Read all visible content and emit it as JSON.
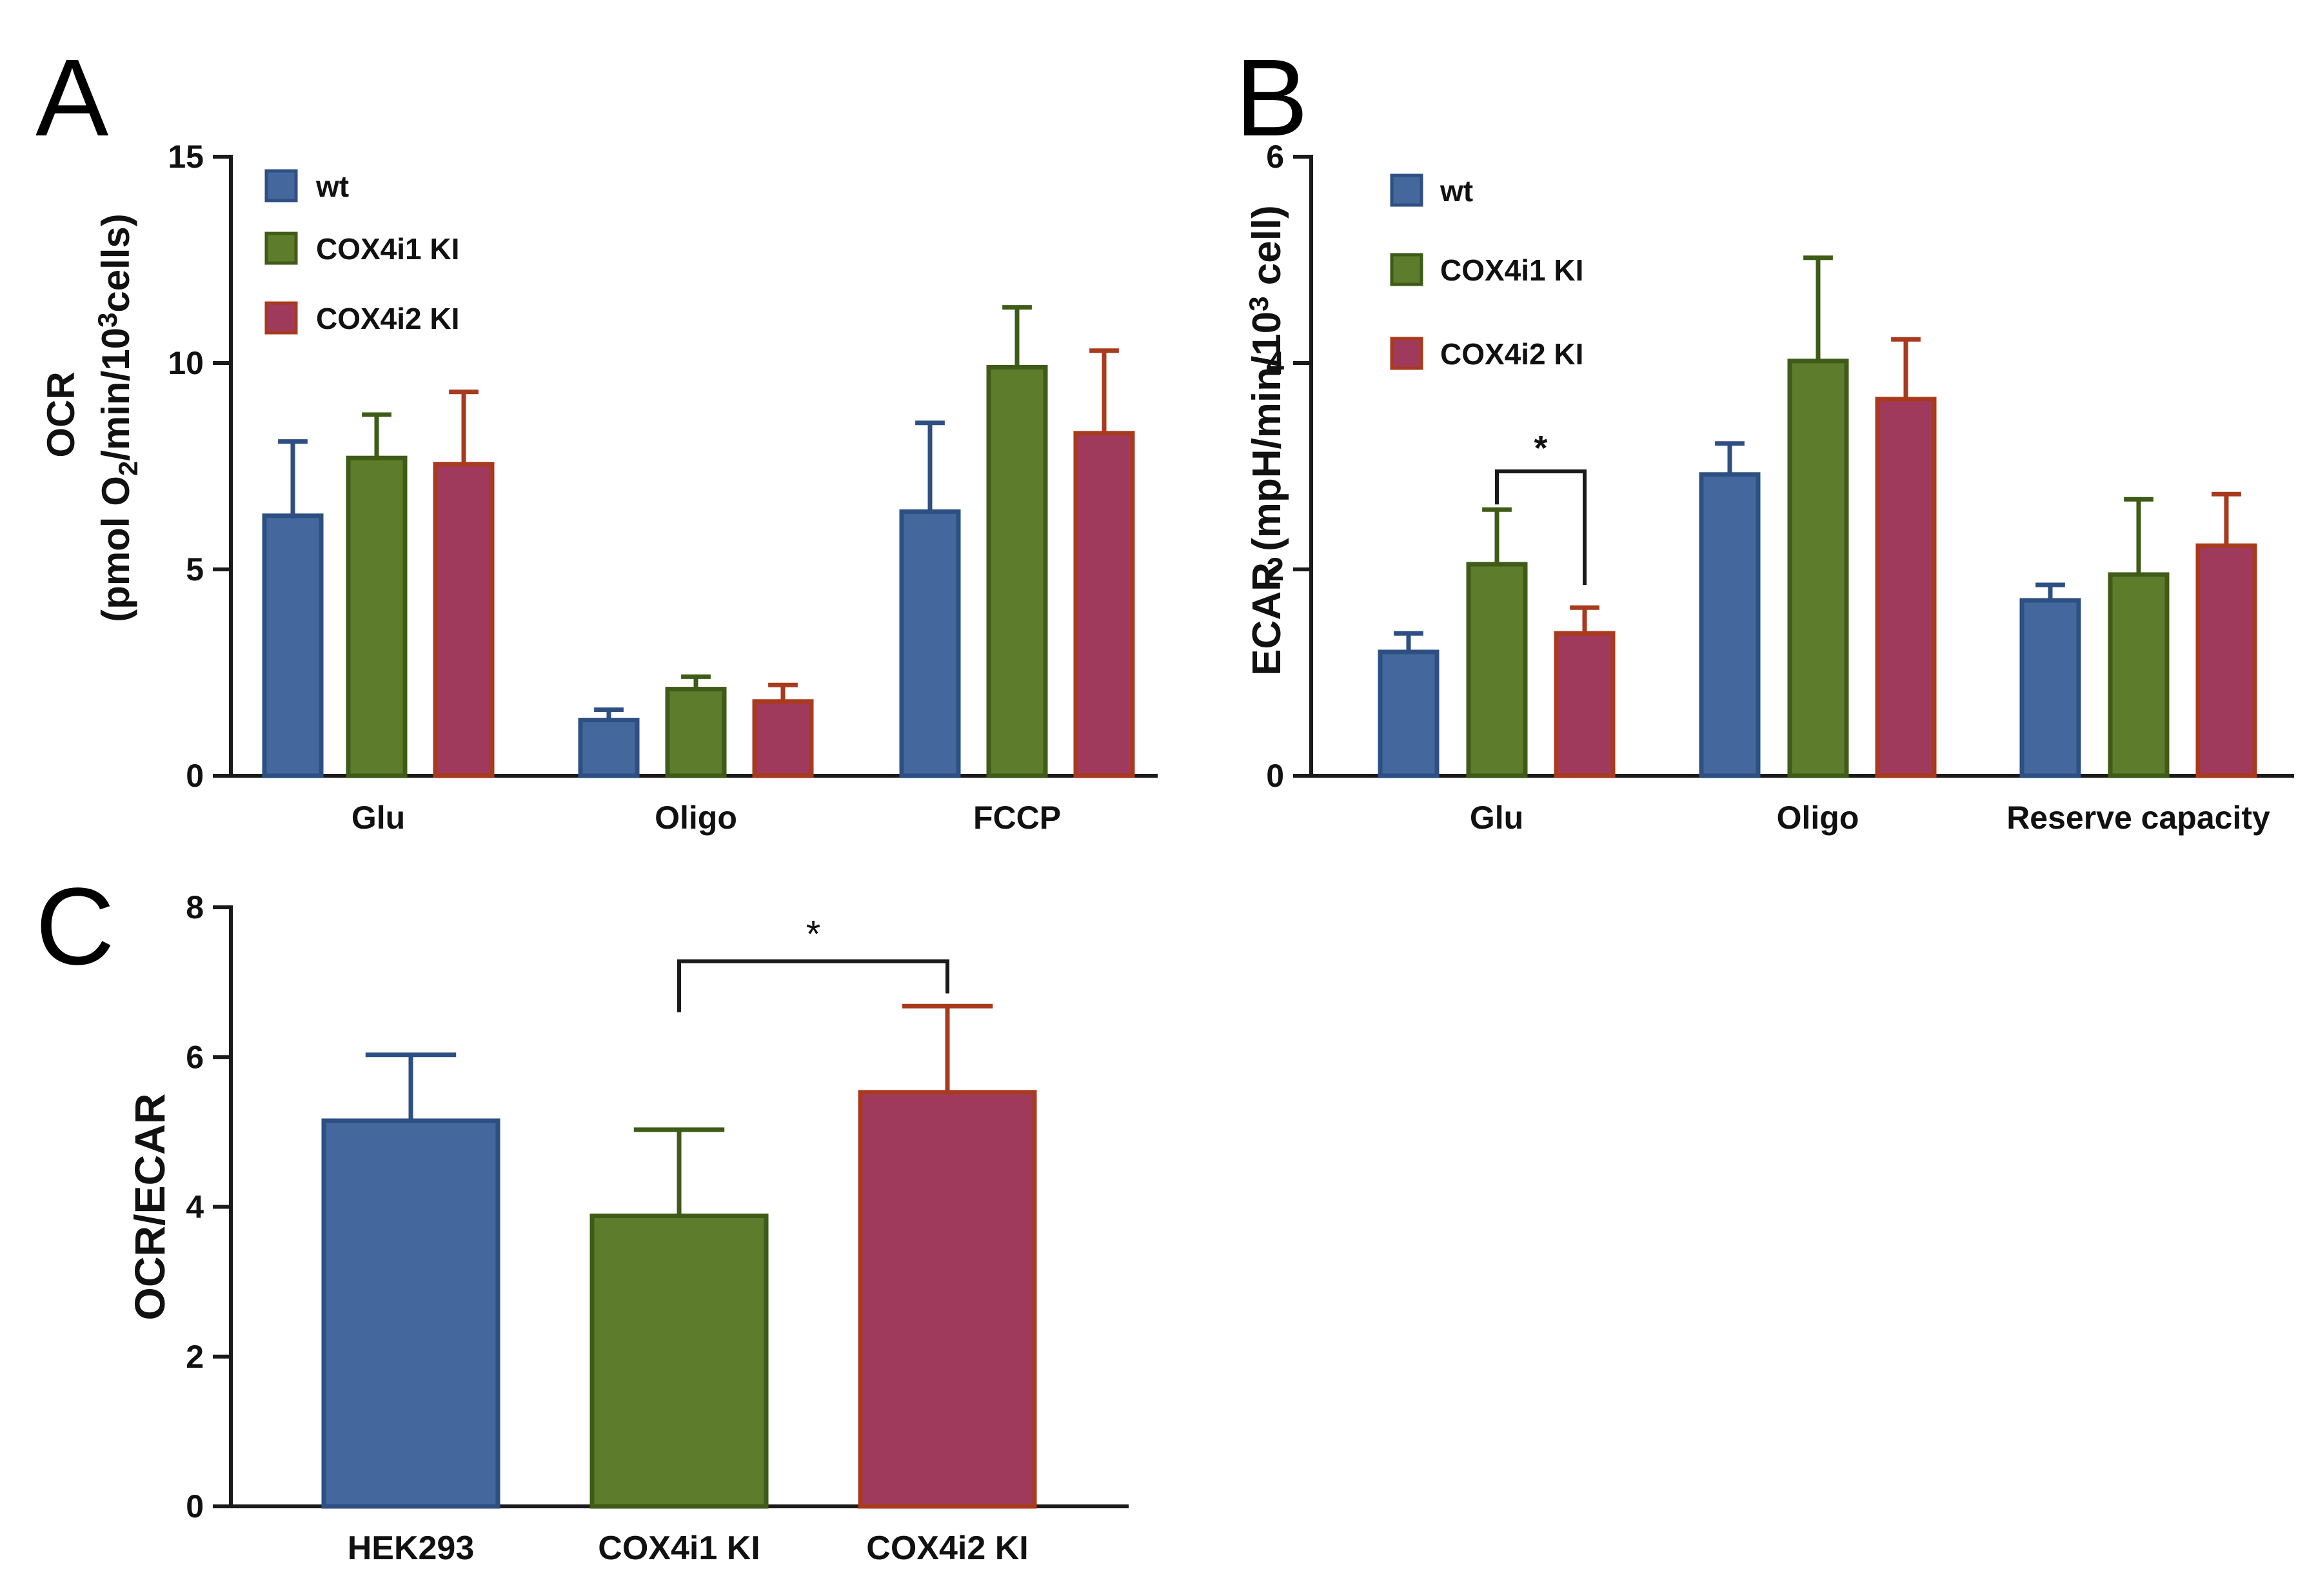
{
  "colors": {
    "axis": "#1a1a1a",
    "text": "#111111",
    "series": [
      {
        "fill": "#44689d",
        "stroke": "#2e4f82"
      },
      {
        "fill": "#5d7d2c",
        "stroke": "#3e5b17"
      },
      {
        "fill": "#a03a5d",
        "stroke": "#a83a1e"
      }
    ]
  },
  "chart_data": [
    {
      "panel": "A",
      "type": "bar",
      "ylabel_line1": "OCR",
      "ylabel_line2_parts": [
        "(pmol O",
        "2",
        "/min/10",
        "3",
        "cells)"
      ],
      "ylim": [
        0,
        15
      ],
      "yticks": [
        "0",
        "5",
        "10",
        "15"
      ],
      "yticks_values": [
        0,
        5,
        10,
        15
      ],
      "categories": [
        "Glu",
        "Oligo",
        "FCCP"
      ],
      "legend": [
        "wt",
        "COX4i1 KI",
        "COX4i2 KI"
      ],
      "series": [
        {
          "name": "wt",
          "values": [
            6.3,
            1.35,
            6.4
          ],
          "errors": [
            1.8,
            0.25,
            2.15
          ]
        },
        {
          "name": "COX4i1 KI",
          "values": [
            7.7,
            2.1,
            9.9
          ],
          "errors": [
            1.05,
            0.3,
            1.45
          ]
        },
        {
          "name": "COX4i2 KI",
          "values": [
            7.55,
            1.8,
            8.3
          ],
          "errors": [
            1.75,
            0.4,
            2.0
          ]
        }
      ],
      "significance": []
    },
    {
      "panel": "B",
      "type": "bar",
      "ylabel_parts": [
        "ECAR (mpH/min/10",
        "3",
        " cell)"
      ],
      "ylim": [
        0,
        6
      ],
      "yticks": [
        "0",
        "2",
        "4",
        "6"
      ],
      "yticks_values": [
        0,
        2,
        4,
        6
      ],
      "categories": [
        "Glu",
        "Oligo",
        "Reserve capacity"
      ],
      "legend": [
        "wt",
        "COX4i1 KI",
        "COX4i2 KI"
      ],
      "series": [
        {
          "name": "wt",
          "values": [
            1.2,
            2.92,
            1.7
          ],
          "errors": [
            0.18,
            0.3,
            0.15
          ]
        },
        {
          "name": "COX4i1 KI",
          "values": [
            2.05,
            4.02,
            1.95
          ],
          "errors": [
            0.53,
            1.0,
            0.73
          ]
        },
        {
          "name": "COX4i2 KI",
          "values": [
            1.38,
            3.65,
            2.23
          ],
          "errors": [
            0.25,
            0.58,
            0.5
          ]
        }
      ],
      "significance": [
        {
          "category": 0,
          "from_series": 1,
          "to_series": 2,
          "label": "*"
        }
      ]
    },
    {
      "panel": "C",
      "type": "bar",
      "ylabel": "OCR/ECAR",
      "ylim": [
        0,
        8
      ],
      "yticks": [
        "0",
        "2",
        "4",
        "6",
        "8"
      ],
      "yticks_values": [
        0,
        2,
        4,
        6,
        8
      ],
      "categories": [
        "HEK293",
        "COX4i1 KI",
        "COX4i2 KI"
      ],
      "values": [
        5.15,
        3.88,
        5.53
      ],
      "errors": [
        0.88,
        1.15,
        1.15
      ],
      "significance": [
        {
          "from": 1,
          "to": 2,
          "label": "*"
        }
      ]
    }
  ]
}
